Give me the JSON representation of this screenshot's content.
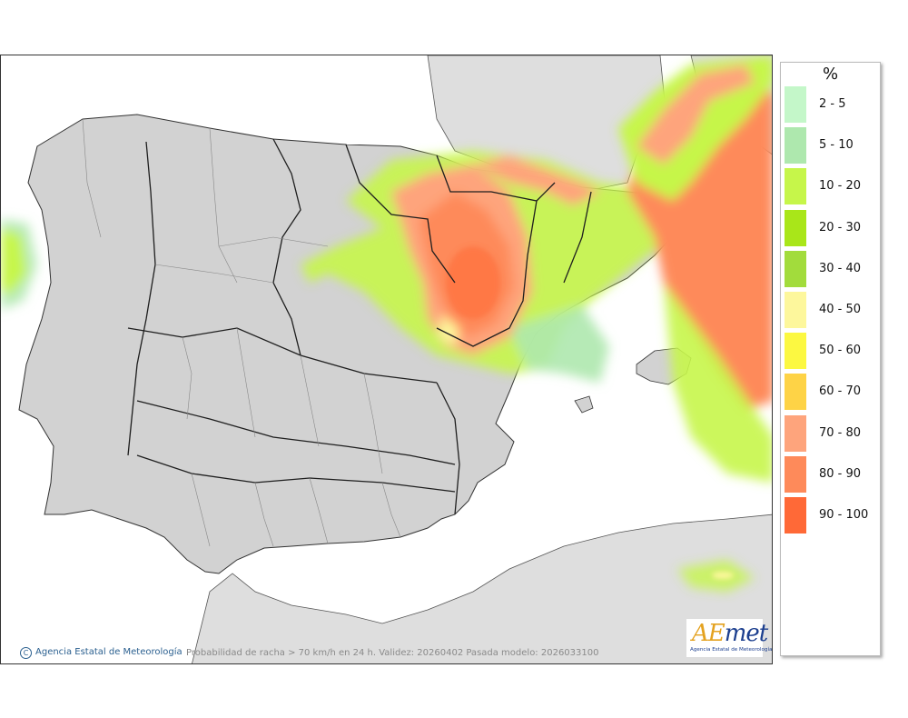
{
  "legend": {
    "unit": "%",
    "items": [
      {
        "label": "2 - 5",
        "color": "#c4f7c9"
      },
      {
        "label": "5 - 10",
        "color": "#aee8ae"
      },
      {
        "label": "10 - 20",
        "color": "#c6f64a"
      },
      {
        "label": "20 - 30",
        "color": "#a9e619"
      },
      {
        "label": "30 - 40",
        "color": "#a2dc3c"
      },
      {
        "label": "40 - 50",
        "color": "#fdf79c"
      },
      {
        "label": "50 - 60",
        "color": "#fcf841"
      },
      {
        "label": "60 - 70",
        "color": "#fed346"
      },
      {
        "label": "70 - 80",
        "color": "#fea47c"
      },
      {
        "label": "80 - 90",
        "color": "#fe8a5a"
      },
      {
        "label": "90 - 100",
        "color": "#ff6937"
      }
    ]
  },
  "footer": {
    "credit_symbol": "C",
    "credit": "Agencia Estatal de Meteorología",
    "caption": "Probabilidad de racha > 70 km/h en 24 h. Validez: 20260402 Pasada modelo: 2026033100"
  },
  "logo": {
    "word_a": "A",
    "word_e": "E",
    "word_rest": "met",
    "subtitle": "Agencia Estatal de Meteorología"
  },
  "map": {
    "land_color": "#d4d4d4",
    "sea_color": "#ffffff",
    "border_color": "#222222"
  }
}
